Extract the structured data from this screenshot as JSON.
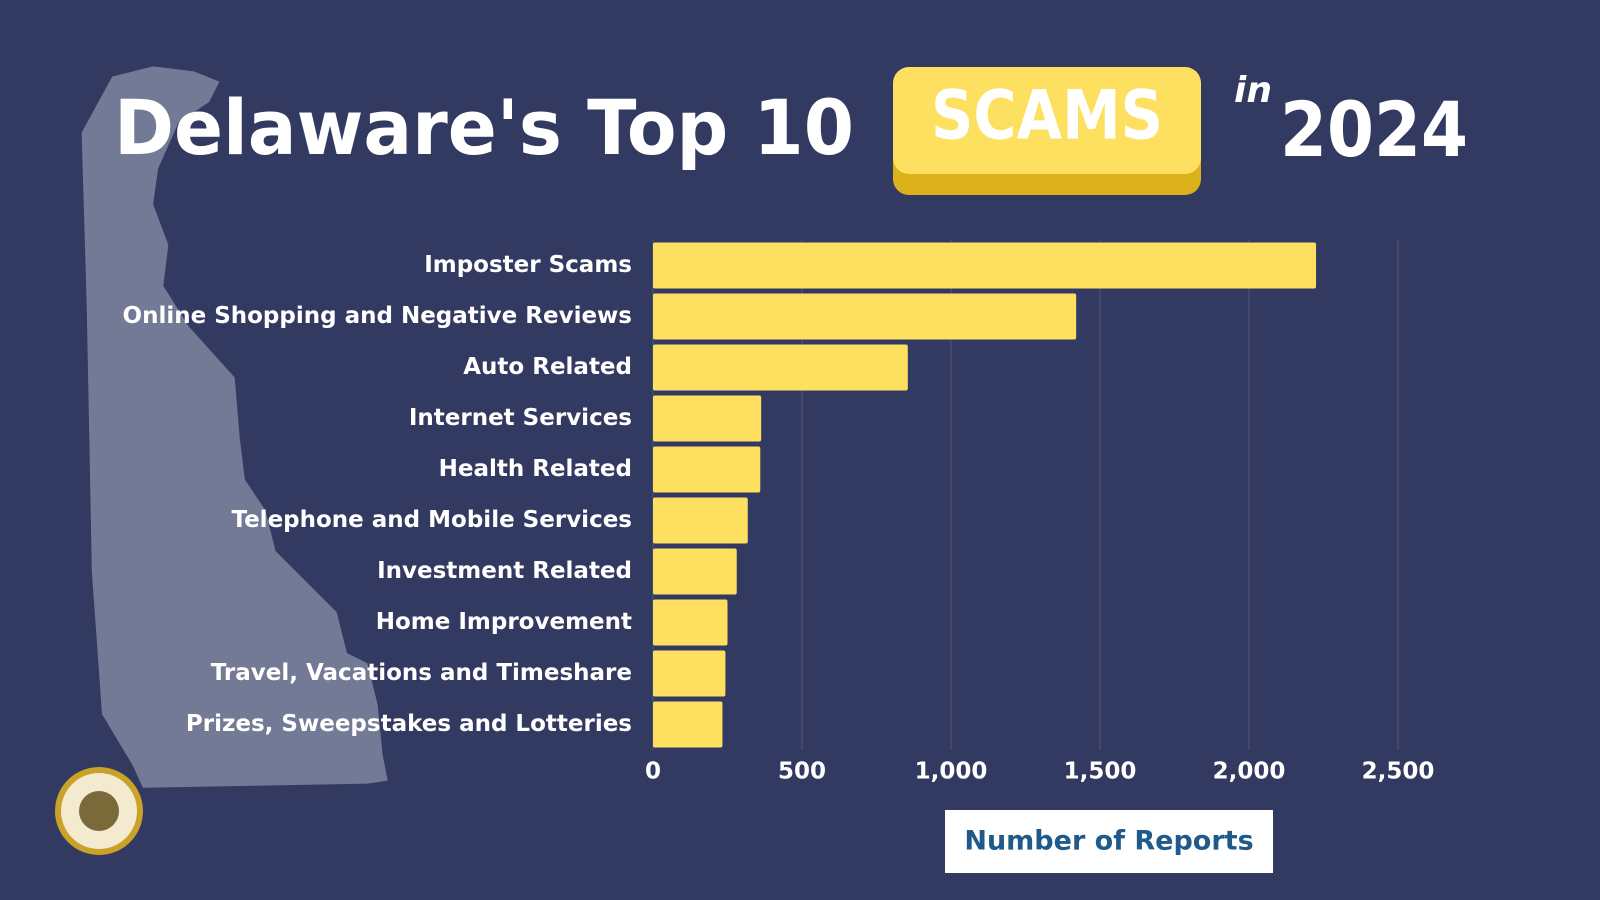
{
  "chart_data": {
    "type": "hbar",
    "title": "Delaware's Top 10",
    "title_highlight": "SCAMS",
    "title_connector": "in",
    "title_year": "2024",
    "categories": [
      "Imposter Scams",
      "Online Shopping and Negative Reviews",
      "Auto Related",
      "Internet Services",
      "Health Related",
      "Telephone and Mobile Services",
      "Investment Related",
      "Home Improvement",
      "Travel, Vacations and Timeshare",
      "Prizes, Sweepstakes and Lotteries"
    ],
    "values": [
      2225,
      1420,
      855,
      363,
      360,
      318,
      281,
      250,
      243,
      233
    ],
    "color": "#fde05f",
    "xlim": [
      0,
      2500
    ],
    "xticks": [
      0,
      500,
      {
        "value": 1000,
        "label": "1,000"
      },
      {
        "value": 1500,
        "label": "1,500"
      },
      {
        "value": 2000,
        "label": "2,000"
      },
      {
        "value": 2500,
        "label": "2,500"
      }
    ],
    "xlabel": "Number of Reports",
    "grid": true
  }
}
